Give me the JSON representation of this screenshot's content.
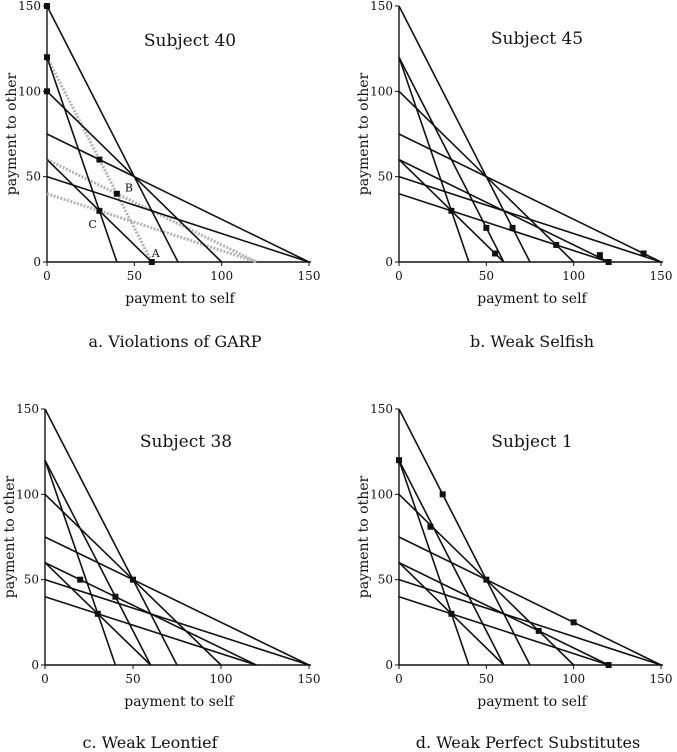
{
  "chart_data": [
    {
      "type": "line",
      "title": "Subject 40",
      "caption": "a. Violations of GARP",
      "xlabel": "payment to self",
      "ylabel": "payment to other",
      "xlim": [
        0,
        150
      ],
      "ylim": [
        0,
        150
      ],
      "xticks": [
        "0",
        "50",
        "100",
        "150"
      ],
      "yticks": [
        "0",
        "50",
        "100",
        "150"
      ],
      "budget_lines": [
        {
          "x_intercept": 150,
          "y_intercept": 50
        },
        {
          "x_intercept": 150,
          "y_intercept": 75
        },
        {
          "x_intercept": 100,
          "y_intercept": 100
        },
        {
          "x_intercept": 75,
          "y_intercept": 150
        },
        {
          "x_intercept": 40,
          "y_intercept": 120
        },
        {
          "x_intercept": 60,
          "y_intercept": 60
        }
      ],
      "highlighted_lines": [
        {
          "x_intercept": 120,
          "y_intercept": 40
        },
        {
          "x_intercept": 120,
          "y_intercept": 60
        },
        {
          "x_intercept": 60,
          "y_intercept": 120
        }
      ],
      "points": [
        {
          "x": 0,
          "y": 150
        },
        {
          "x": 0,
          "y": 120
        },
        {
          "x": 0,
          "y": 100
        },
        {
          "x": 30,
          "y": 60
        },
        {
          "x": 40,
          "y": 40,
          "label": "B"
        },
        {
          "x": 30,
          "y": 30,
          "label": "C"
        },
        {
          "x": 60,
          "y": 0,
          "label": "A"
        }
      ]
    },
    {
      "type": "line",
      "title": "Subject 45",
      "caption": "b. Weak Selfish",
      "xlabel": "payment to self",
      "ylabel": "payment to other",
      "xlim": [
        0,
        150
      ],
      "ylim": [
        0,
        150
      ],
      "xticks": [
        "0",
        "50",
        "100",
        "150"
      ],
      "yticks": [
        "0",
        "50",
        "100",
        "150"
      ],
      "budget_lines": [
        {
          "x_intercept": 150,
          "y_intercept": 50
        },
        {
          "x_intercept": 150,
          "y_intercept": 75
        },
        {
          "x_intercept": 100,
          "y_intercept": 100
        },
        {
          "x_intercept": 75,
          "y_intercept": 150
        },
        {
          "x_intercept": 40,
          "y_intercept": 120
        },
        {
          "x_intercept": 60,
          "y_intercept": 60
        },
        {
          "x_intercept": 120,
          "y_intercept": 40
        },
        {
          "x_intercept": 120,
          "y_intercept": 60
        },
        {
          "x_intercept": 60,
          "y_intercept": 120
        }
      ],
      "points": [
        {
          "x": 140,
          "y": 5
        },
        {
          "x": 120,
          "y": 0
        },
        {
          "x": 115,
          "y": 4
        },
        {
          "x": 90,
          "y": 10
        },
        {
          "x": 65,
          "y": 20
        },
        {
          "x": 50,
          "y": 20
        },
        {
          "x": 55,
          "y": 5
        },
        {
          "x": 30,
          "y": 30
        }
      ]
    },
    {
      "type": "line",
      "title": "Subject 38",
      "caption": "c. Weak Leontief",
      "xlabel": "payment to self",
      "ylabel": "payment to other",
      "xlim": [
        0,
        150
      ],
      "ylim": [
        0,
        150
      ],
      "xticks": [
        "0",
        "50",
        "100",
        "150"
      ],
      "yticks": [
        "0",
        "50",
        "100",
        "150"
      ],
      "budget_lines": [
        {
          "x_intercept": 150,
          "y_intercept": 50
        },
        {
          "x_intercept": 150,
          "y_intercept": 75
        },
        {
          "x_intercept": 100,
          "y_intercept": 100
        },
        {
          "x_intercept": 75,
          "y_intercept": 150
        },
        {
          "x_intercept": 40,
          "y_intercept": 120
        },
        {
          "x_intercept": 60,
          "y_intercept": 60
        },
        {
          "x_intercept": 120,
          "y_intercept": 40
        },
        {
          "x_intercept": 120,
          "y_intercept": 60
        },
        {
          "x_intercept": 60,
          "y_intercept": 120
        }
      ],
      "points": [
        {
          "x": 50,
          "y": 50
        },
        {
          "x": 40,
          "y": 40
        },
        {
          "x": 20,
          "y": 50
        },
        {
          "x": 30,
          "y": 30
        }
      ]
    },
    {
      "type": "line",
      "title": "Subject 1",
      "caption": "d. Weak Perfect Substitutes",
      "xlabel": "payment to self",
      "ylabel": "payment to other",
      "xlim": [
        0,
        150
      ],
      "ylim": [
        0,
        150
      ],
      "xticks": [
        "0",
        "50",
        "100",
        "150"
      ],
      "yticks": [
        "0",
        "50",
        "100",
        "150"
      ],
      "budget_lines": [
        {
          "x_intercept": 150,
          "y_intercept": 50
        },
        {
          "x_intercept": 150,
          "y_intercept": 75
        },
        {
          "x_intercept": 100,
          "y_intercept": 100
        },
        {
          "x_intercept": 75,
          "y_intercept": 150
        },
        {
          "x_intercept": 40,
          "y_intercept": 120
        },
        {
          "x_intercept": 60,
          "y_intercept": 60
        },
        {
          "x_intercept": 120,
          "y_intercept": 40
        },
        {
          "x_intercept": 120,
          "y_intercept": 60
        },
        {
          "x_intercept": 60,
          "y_intercept": 120
        }
      ],
      "points": [
        {
          "x": 0,
          "y": 120
        },
        {
          "x": 25,
          "y": 100
        },
        {
          "x": 18,
          "y": 81
        },
        {
          "x": 50,
          "y": 50
        },
        {
          "x": 30,
          "y": 30
        },
        {
          "x": 80,
          "y": 20
        },
        {
          "x": 100,
          "y": 25
        },
        {
          "x": 120,
          "y": 0
        }
      ]
    }
  ],
  "colors": {
    "line": "#111111",
    "highlight": "#b3b3b3",
    "point": "#111111"
  }
}
